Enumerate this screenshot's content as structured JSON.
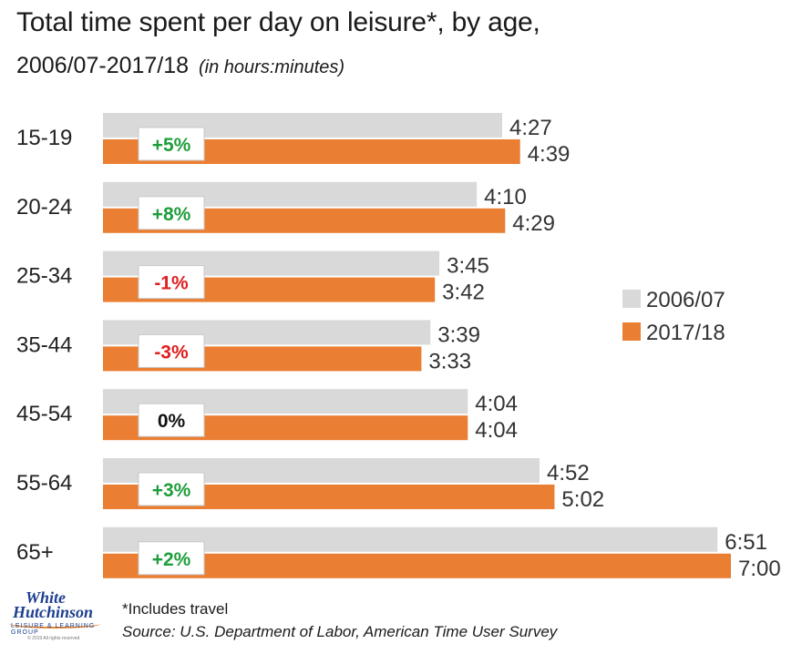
{
  "title": "Total time spent per day on leisure*, by age,",
  "subtitle": "2006/07-2017/18",
  "unit_note": "(in hours:minutes)",
  "footnote": "*Includes travel",
  "source": "Source: U.S. Department of Labor, American Time User Survey",
  "logo": {
    "line1": "White",
    "line2": "Hutchinson",
    "line3": "LEISURE & LEARNING GROUP",
    "line4": "© 2019 All rights reserved"
  },
  "colors": {
    "series_2006": "#d9d9d9",
    "series_2017": "#ea7e32",
    "positive_change": "#1e9e3a",
    "negative_change": "#e02020",
    "neutral_change": "#111111"
  },
  "chart_data": {
    "type": "bar",
    "orientation": "horizontal",
    "categories": [
      "15-19",
      "20-24",
      "25-34",
      "35-44",
      "45-54",
      "55-64",
      "65+"
    ],
    "series": [
      {
        "name": "2006/07",
        "values_minutes": [
          267,
          250,
          225,
          219,
          244,
          292,
          411
        ],
        "labels": [
          "4:27",
          "4:10",
          "3:45",
          "3:39",
          "4:04",
          "4:52",
          "6:51"
        ]
      },
      {
        "name": "2017/18",
        "values_minutes": [
          279,
          269,
          222,
          213,
          244,
          302,
          420
        ],
        "labels": [
          "4:39",
          "4:29",
          "3:42",
          "3:33",
          "4:04",
          "5:02",
          "7:00"
        ]
      }
    ],
    "changes": [
      "+5%",
      "+8%",
      "-1%",
      "-3%",
      "0%",
      "+3%",
      "+2%"
    ],
    "xlim_minutes": [
      0,
      420
    ],
    "legend_position": "right",
    "grid": false
  }
}
